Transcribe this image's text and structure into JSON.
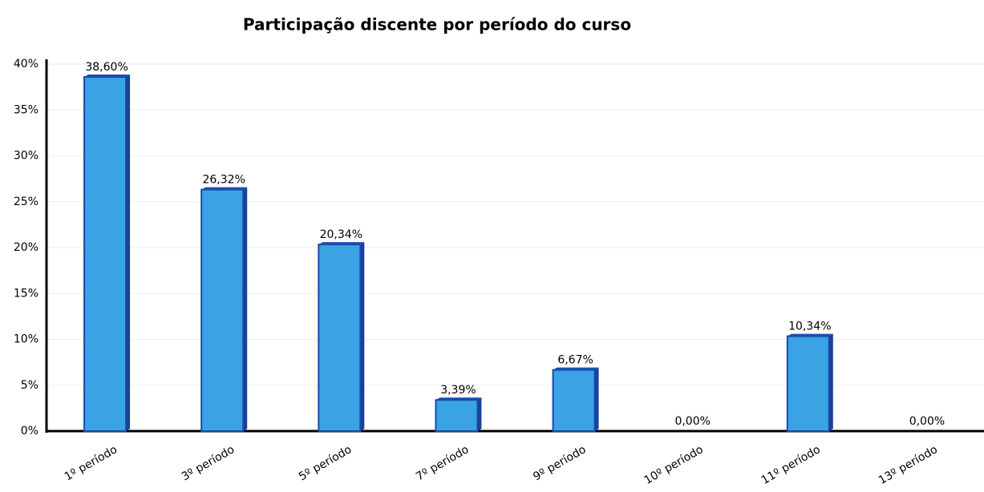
{
  "chart_data": {
    "type": "bar",
    "title": "Participação discente por período do curso",
    "categories": [
      "1º período",
      "3º período",
      "5º período",
      "7º período",
      "9º período",
      "10º período",
      "11º período",
      "13º período"
    ],
    "values": [
      38.6,
      26.32,
      20.34,
      3.39,
      6.67,
      0,
      10.34,
      0
    ],
    "value_labels": [
      "38,60%",
      "26,32%",
      "20,34%",
      "3,39%",
      "6,67%",
      "0,00%",
      "10,34%",
      "0,00%"
    ],
    "color": "#3aa3e3",
    "ylim": [
      0,
      40
    ],
    "yticks": [
      {
        "value": 0,
        "label": "0%"
      },
      {
        "value": 5,
        "label": "5%"
      },
      {
        "value": 10,
        "label": "10%"
      },
      {
        "value": 15,
        "label": "15%"
      },
      {
        "value": 20,
        "label": "20%"
      },
      {
        "value": 25,
        "label": "25%"
      },
      {
        "value": 30,
        "label": "30%"
      },
      {
        "value": 35,
        "label": "35%"
      },
      {
        "value": 40,
        "label": "40%"
      }
    ],
    "grid": true
  }
}
